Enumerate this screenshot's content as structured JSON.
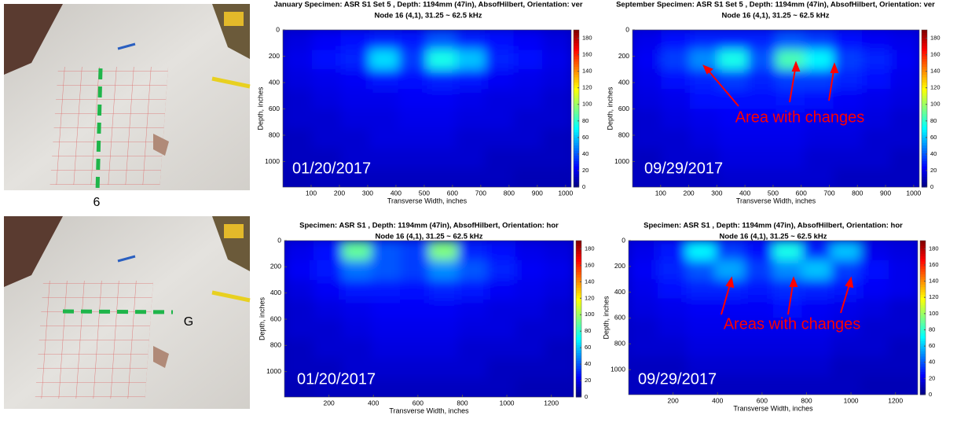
{
  "photos": [
    {
      "label": "6"
    },
    {
      "label": "G"
    }
  ],
  "chart_data": [
    {
      "type": "heatmap",
      "title": "January Specimen: ASR S1 Set 5 , Depth: 1194mm (47in), AbsofHilbert, Orientation: ver",
      "subtitle": "Node 16 (4,1), 31.25 ~ 62.5 kHz",
      "xlabel": "Transverse Width, inches",
      "ylabel": "Depth, inches",
      "date": "01/20/2017",
      "xlim": [
        0,
        1020
      ],
      "ylim": [
        0,
        1194
      ],
      "xticks": [
        100,
        200,
        300,
        400,
        500,
        600,
        700,
        800,
        900,
        1000
      ],
      "yticks": [
        0,
        200,
        400,
        600,
        800,
        1000
      ],
      "xbins": [
        0,
        102,
        204,
        306,
        408,
        510,
        612,
        714,
        816,
        918,
        1020
      ],
      "ybins": [
        0,
        150,
        300,
        450,
        600,
        750,
        900,
        1050,
        1194
      ],
      "clim": [
        0,
        190
      ],
      "colorbar_ticks": [
        0,
        20,
        40,
        60,
        80,
        100,
        120,
        140,
        160,
        180
      ],
      "colormap": "jet",
      "z": [
        [
          18,
          22,
          25,
          30,
          28,
          40,
          30,
          25,
          22,
          18
        ],
        [
          20,
          25,
          30,
          65,
          35,
          75,
          60,
          30,
          25,
          20
        ],
        [
          18,
          20,
          22,
          28,
          25,
          30,
          28,
          22,
          20,
          18
        ],
        [
          15,
          18,
          20,
          20,
          22,
          22,
          20,
          18,
          18,
          15
        ],
        [
          15,
          15,
          18,
          18,
          20,
          20,
          18,
          18,
          15,
          15
        ],
        [
          12,
          15,
          15,
          18,
          18,
          18,
          15,
          15,
          15,
          12
        ],
        [
          12,
          12,
          15,
          15,
          15,
          15,
          15,
          12,
          12,
          12
        ],
        [
          10,
          12,
          12,
          12,
          12,
          12,
          12,
          12,
          10,
          10
        ]
      ]
    },
    {
      "type": "heatmap",
      "title": "September Specimen: ASR S1 Set 5 , Depth: 1194mm (47in), AbsofHilbert, Orientation: ver",
      "subtitle": "Node 16 (4,1), 31.25 ~ 62.5 kHz",
      "xlabel": "Transverse Width, inches",
      "ylabel": "Depth, inches",
      "date": "09/29/2017",
      "annotation": "Area with changes",
      "xlim": [
        0,
        1020
      ],
      "ylim": [
        0,
        1194
      ],
      "xticks": [
        100,
        200,
        300,
        400,
        500,
        600,
        700,
        800,
        900,
        1000
      ],
      "yticks": [
        0,
        200,
        400,
        600,
        800,
        1000
      ],
      "xbins": [
        0,
        102,
        204,
        306,
        408,
        510,
        612,
        714,
        816,
        918,
        1020
      ],
      "ybins": [
        0,
        150,
        300,
        450,
        600,
        750,
        900,
        1050,
        1194
      ],
      "clim": [
        0,
        190
      ],
      "colorbar_ticks": [
        0,
        20,
        40,
        60,
        80,
        100,
        120,
        140,
        160,
        180
      ],
      "colormap": "jet",
      "z": [
        [
          20,
          25,
          30,
          30,
          30,
          40,
          35,
          25,
          22,
          20
        ],
        [
          22,
          35,
          50,
          75,
          40,
          85,
          70,
          35,
          30,
          22
        ],
        [
          20,
          25,
          30,
          35,
          30,
          35,
          35,
          30,
          25,
          20
        ],
        [
          18,
          20,
          25,
          25,
          25,
          28,
          25,
          22,
          20,
          18
        ],
        [
          15,
          18,
          20,
          22,
          22,
          22,
          20,
          20,
          18,
          15
        ],
        [
          15,
          15,
          18,
          20,
          20,
          20,
          18,
          18,
          15,
          15
        ],
        [
          12,
          15,
          15,
          18,
          18,
          18,
          15,
          15,
          15,
          12
        ],
        [
          12,
          12,
          12,
          15,
          15,
          15,
          15,
          12,
          12,
          12
        ]
      ]
    },
    {
      "type": "heatmap",
      "title": "Specimen: ASR S1 , Depth: 1194mm (47in), AbsofHilbert, Orientation: hor",
      "subtitle": "Node 16 (4,1), 31.25 ~ 62.5 kHz",
      "xlabel": "Transverse Width, inches",
      "ylabel": "Depth, inches",
      "date": "01/20/2017",
      "xlim": [
        0,
        1300
      ],
      "ylim": [
        0,
        1194
      ],
      "xticks": [
        200,
        400,
        600,
        800,
        1000,
        1200
      ],
      "yticks": [
        0,
        200,
        400,
        600,
        800,
        1000
      ],
      "xbins": [
        0,
        130,
        260,
        390,
        520,
        650,
        780,
        910,
        1040,
        1170,
        1300
      ],
      "ybins": [
        0,
        150,
        300,
        450,
        600,
        750,
        900,
        1050,
        1194
      ],
      "clim": [
        0,
        190
      ],
      "colorbar_ticks": [
        0,
        20,
        40,
        60,
        80,
        100,
        120,
        140,
        160,
        180
      ],
      "colormap": "jet",
      "z": [
        [
          20,
          25,
          90,
          40,
          35,
          95,
          30,
          25,
          20,
          18
        ],
        [
          22,
          28,
          45,
          40,
          35,
          50,
          40,
          30,
          22,
          20
        ],
        [
          18,
          22,
          28,
          28,
          25,
          30,
          28,
          22,
          20,
          18
        ],
        [
          15,
          18,
          20,
          22,
          22,
          22,
          20,
          18,
          18,
          15
        ],
        [
          15,
          15,
          18,
          20,
          20,
          20,
          18,
          18,
          15,
          15
        ],
        [
          12,
          15,
          15,
          18,
          18,
          18,
          15,
          15,
          15,
          12
        ],
        [
          12,
          12,
          15,
          15,
          15,
          15,
          15,
          12,
          12,
          12
        ],
        [
          10,
          12,
          12,
          12,
          12,
          12,
          12,
          12,
          10,
          10
        ]
      ]
    },
    {
      "type": "heatmap",
      "title": "Specimen: ASR S1 , Depth: 1194mm (47in), AbsofHilbert, Orientation: hor",
      "subtitle": "Node 16 (4,1), 31.25 ~ 62.5 kHz",
      "xlabel": "Transverse Width, inches",
      "ylabel": "Depth, inches",
      "date": "09/29/2017",
      "annotation": "Areas with changes",
      "xlim": [
        0,
        1300
      ],
      "ylim": [
        0,
        1194
      ],
      "xticks": [
        200,
        400,
        600,
        800,
        1000,
        1200
      ],
      "yticks": [
        0,
        200,
        400,
        600,
        800,
        1000
      ],
      "xbins": [
        0,
        130,
        260,
        390,
        520,
        650,
        780,
        910,
        1040,
        1170,
        1300
      ],
      "ybins": [
        0,
        150,
        300,
        450,
        600,
        750,
        900,
        1050,
        1194
      ],
      "clim": [
        0,
        190
      ],
      "colorbar_ticks": [
        0,
        20,
        40,
        60,
        80,
        100,
        120,
        140,
        160,
        180
      ],
      "colormap": "jet",
      "z": [
        [
          20,
          28,
          70,
          35,
          25,
          75,
          30,
          60,
          20,
          18
        ],
        [
          22,
          30,
          40,
          55,
          35,
          50,
          60,
          35,
          25,
          20
        ],
        [
          20,
          25,
          30,
          30,
          28,
          32,
          30,
          28,
          22,
          20
        ],
        [
          18,
          20,
          22,
          22,
          22,
          25,
          22,
          20,
          18,
          15
        ],
        [
          15,
          18,
          20,
          20,
          20,
          20,
          20,
          18,
          15,
          15
        ],
        [
          15,
          15,
          18,
          18,
          18,
          18,
          18,
          15,
          15,
          12
        ],
        [
          12,
          12,
          15,
          15,
          15,
          15,
          15,
          12,
          12,
          12
        ],
        [
          12,
          12,
          12,
          12,
          12,
          12,
          12,
          12,
          10,
          10
        ]
      ]
    }
  ]
}
